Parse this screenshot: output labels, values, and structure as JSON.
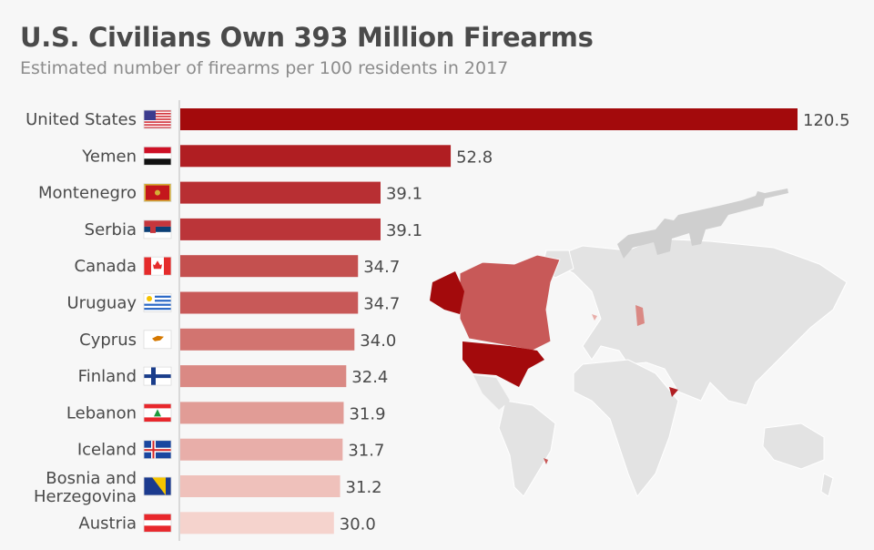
{
  "header": {
    "title": "U.S. Civilians Own 393 Million Firearms",
    "subtitle": "Estimated number of firearms per 100 residents in 2017"
  },
  "chart_data": {
    "type": "bar",
    "orientation": "horizontal",
    "title": "U.S. Civilians Own 393 Million Firearms",
    "subtitle": "Estimated number of firearms per 100 residents in 2017",
    "xlabel": "",
    "ylabel": "",
    "xlim": [
      0,
      120.5
    ],
    "grid": false,
    "categories": [
      "United States",
      "Yemen",
      "Montenegro",
      "Serbia",
      "Canada",
      "Uruguay",
      "Cyprus",
      "Finland",
      "Lebanon",
      "Iceland",
      "Bosnia and Herzegovina",
      "Austria"
    ],
    "category_lines": [
      [
        "United States"
      ],
      [
        "Yemen"
      ],
      [
        "Montenegro"
      ],
      [
        "Serbia"
      ],
      [
        "Canada"
      ],
      [
        "Uruguay"
      ],
      [
        "Cyprus"
      ],
      [
        "Finland"
      ],
      [
        "Lebanon"
      ],
      [
        "Iceland"
      ],
      [
        "Bosnia and",
        "Herzegovina"
      ],
      [
        "Austria"
      ]
    ],
    "values": [
      120.5,
      52.8,
      39.1,
      39.1,
      34.7,
      34.7,
      34.0,
      32.4,
      31.9,
      31.7,
      31.2,
      30.0
    ],
    "value_labels": [
      "120.5",
      "52.8",
      "39.1",
      "39.1",
      "34.7",
      "34.7",
      "34.0",
      "32.4",
      "31.9",
      "31.7",
      "31.2",
      "30.0"
    ],
    "colors": [
      "#a30a0c",
      "#b01e22",
      "#b82f33",
      "#bb3539",
      "#c4504f",
      "#c85958",
      "#d27470",
      "#da8984",
      "#e19c96",
      "#e8aea9",
      "#efc1bb",
      "#f5d3cd"
    ],
    "flags": [
      "us",
      "ye",
      "me",
      "rs",
      "ca",
      "uy",
      "cy",
      "fi",
      "lb",
      "is",
      "ba",
      "at"
    ]
  },
  "map": {
    "highlight_color": "#a30a0c",
    "land_color": "#e3e3e3",
    "gun_color": "#cfcfcf"
  }
}
